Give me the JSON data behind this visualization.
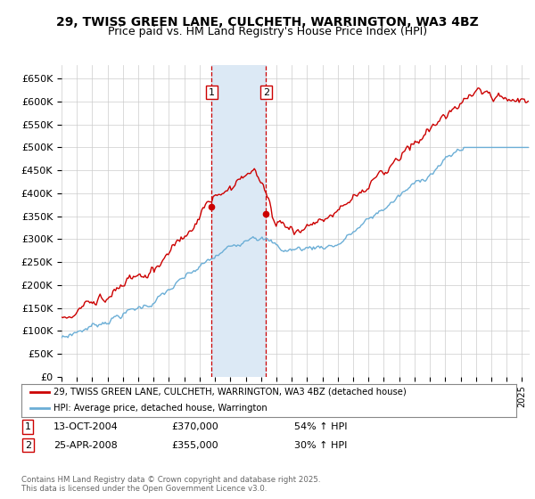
{
  "title": "29, TWISS GREEN LANE, CULCHETH, WARRINGTON, WA3 4BZ",
  "subtitle": "Price paid vs. HM Land Registry's House Price Index (HPI)",
  "ylabel_ticks": [
    "£0",
    "£50K",
    "£100K",
    "£150K",
    "£200K",
    "£250K",
    "£300K",
    "£350K",
    "£400K",
    "£450K",
    "£500K",
    "£550K",
    "£600K",
    "£650K"
  ],
  "ytick_values": [
    0,
    50000,
    100000,
    150000,
    200000,
    250000,
    300000,
    350000,
    400000,
    450000,
    500000,
    550000,
    600000,
    650000
  ],
  "ylim": [
    0,
    680000
  ],
  "xlim_start": 1995.0,
  "xlim_end": 2025.5,
  "hpi_color": "#6baed6",
  "price_color": "#cc0000",
  "purchase1_x": 2004.783,
  "purchase1_y": 370000,
  "purchase2_x": 2008.317,
  "purchase2_y": 355000,
  "shade_color": "#dce9f5",
  "legend_line1": "29, TWISS GREEN LANE, CULCHETH, WARRINGTON, WA3 4BZ (detached house)",
  "legend_line2": "HPI: Average price, detached house, Warrington",
  "table_1_date": "13-OCT-2004",
  "table_1_price": "£370,000",
  "table_1_hpi": "54% ↑ HPI",
  "table_2_date": "25-APR-2008",
  "table_2_price": "£355,000",
  "table_2_hpi": "30% ↑ HPI",
  "footer": "Contains HM Land Registry data © Crown copyright and database right 2025.\nThis data is licensed under the Open Government Licence v3.0.",
  "title_fontsize": 10,
  "subtitle_fontsize": 9,
  "tick_fontsize": 8,
  "background_color": "#ffffff",
  "grid_color": "#cccccc"
}
